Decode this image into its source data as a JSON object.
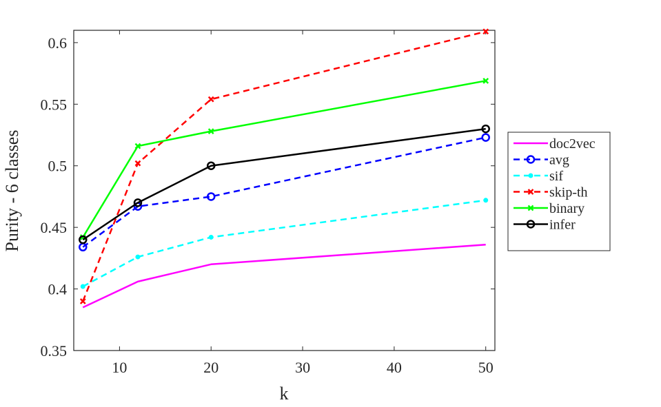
{
  "chart_data": {
    "type": "line",
    "xlabel": "k",
    "ylabel": "Purity - 6 classes",
    "xlim": [
      5,
      51
    ],
    "ylim": [
      0.35,
      0.61
    ],
    "xticks": [
      10,
      20,
      30,
      40,
      50
    ],
    "yticks": [
      0.35,
      0.4,
      0.45,
      0.5,
      0.55,
      0.6
    ],
    "x": [
      6,
      12,
      20,
      50
    ],
    "legend_position": "outside-right",
    "grid": false,
    "series": [
      {
        "name": "doc2vec",
        "values": [
          0.385,
          0.406,
          0.42,
          0.436
        ],
        "color": "#ff00ff",
        "dash": "solid",
        "marker": "none"
      },
      {
        "name": "avg",
        "values": [
          0.434,
          0.467,
          0.475,
          0.523
        ],
        "color": "#0000ff",
        "dash": "dashed",
        "marker": "circle"
      },
      {
        "name": "sif",
        "values": [
          0.402,
          0.426,
          0.442,
          0.472
        ],
        "color": "#00ffff",
        "dash": "dashed",
        "marker": "dot"
      },
      {
        "name": "skip-th",
        "values": [
          0.39,
          0.502,
          0.554,
          0.609
        ],
        "color": "#ff0000",
        "dash": "dashed",
        "marker": "x"
      },
      {
        "name": "binary",
        "values": [
          0.442,
          0.516,
          0.528,
          0.569
        ],
        "color": "#00ff00",
        "dash": "solid",
        "marker": "x"
      },
      {
        "name": "infer",
        "values": [
          0.44,
          0.47,
          0.5,
          0.53
        ],
        "color": "#000000",
        "dash": "solid",
        "marker": "circle"
      }
    ]
  }
}
